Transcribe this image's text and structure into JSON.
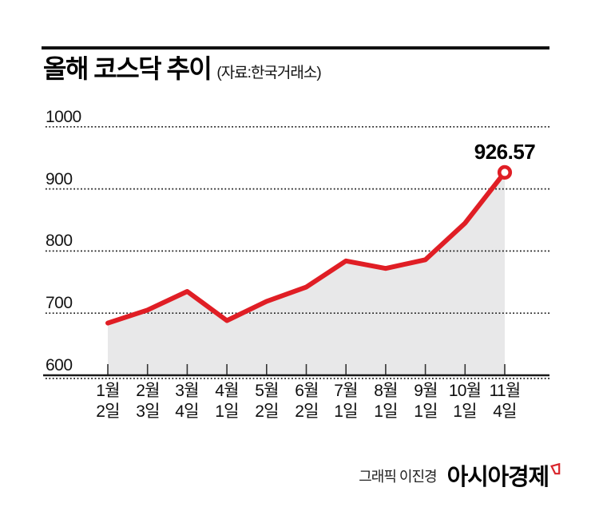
{
  "header": {
    "title": "올해 코스닥 추이",
    "subtitle": "(자료:한국거래소)"
  },
  "footer": {
    "credit": "그래픽 이진경",
    "brand": "아시아경제",
    "brand_mark_icon": "asiae-flag-icon"
  },
  "colors": {
    "line_red": "#e01e25",
    "area_gray": "#e8e8e9",
    "grid_dot": "#1c1c1c",
    "axis": "#1a1a1a",
    "text": "#111111"
  },
  "chart_data": {
    "type": "area",
    "title": "올해 코스닥 추이",
    "source": "자료: 한국거래소",
    "categories": [
      {
        "month": "1월",
        "day": "2일"
      },
      {
        "month": "2월",
        "day": "3일"
      },
      {
        "month": "3월",
        "day": "4일"
      },
      {
        "month": "4월",
        "day": "1일"
      },
      {
        "month": "5월",
        "day": "2일"
      },
      {
        "month": "6월",
        "day": "2일"
      },
      {
        "month": "7월",
        "day": "1일"
      },
      {
        "month": "8월",
        "day": "1일"
      },
      {
        "month": "9월",
        "day": "1일"
      },
      {
        "month": "10월",
        "day": "1일"
      },
      {
        "month": "11월",
        "day": "4일"
      }
    ],
    "values": [
      684,
      705,
      735,
      688,
      719,
      742,
      784,
      772,
      786,
      845,
      926.57
    ],
    "last_value_label": "926.57",
    "ylim": [
      600,
      1000
    ],
    "yticks": [
      600,
      700,
      800,
      900,
      1000
    ],
    "grid": "horizontal-dotted",
    "legend": "none",
    "marker": "open-circle-on-last-point"
  }
}
